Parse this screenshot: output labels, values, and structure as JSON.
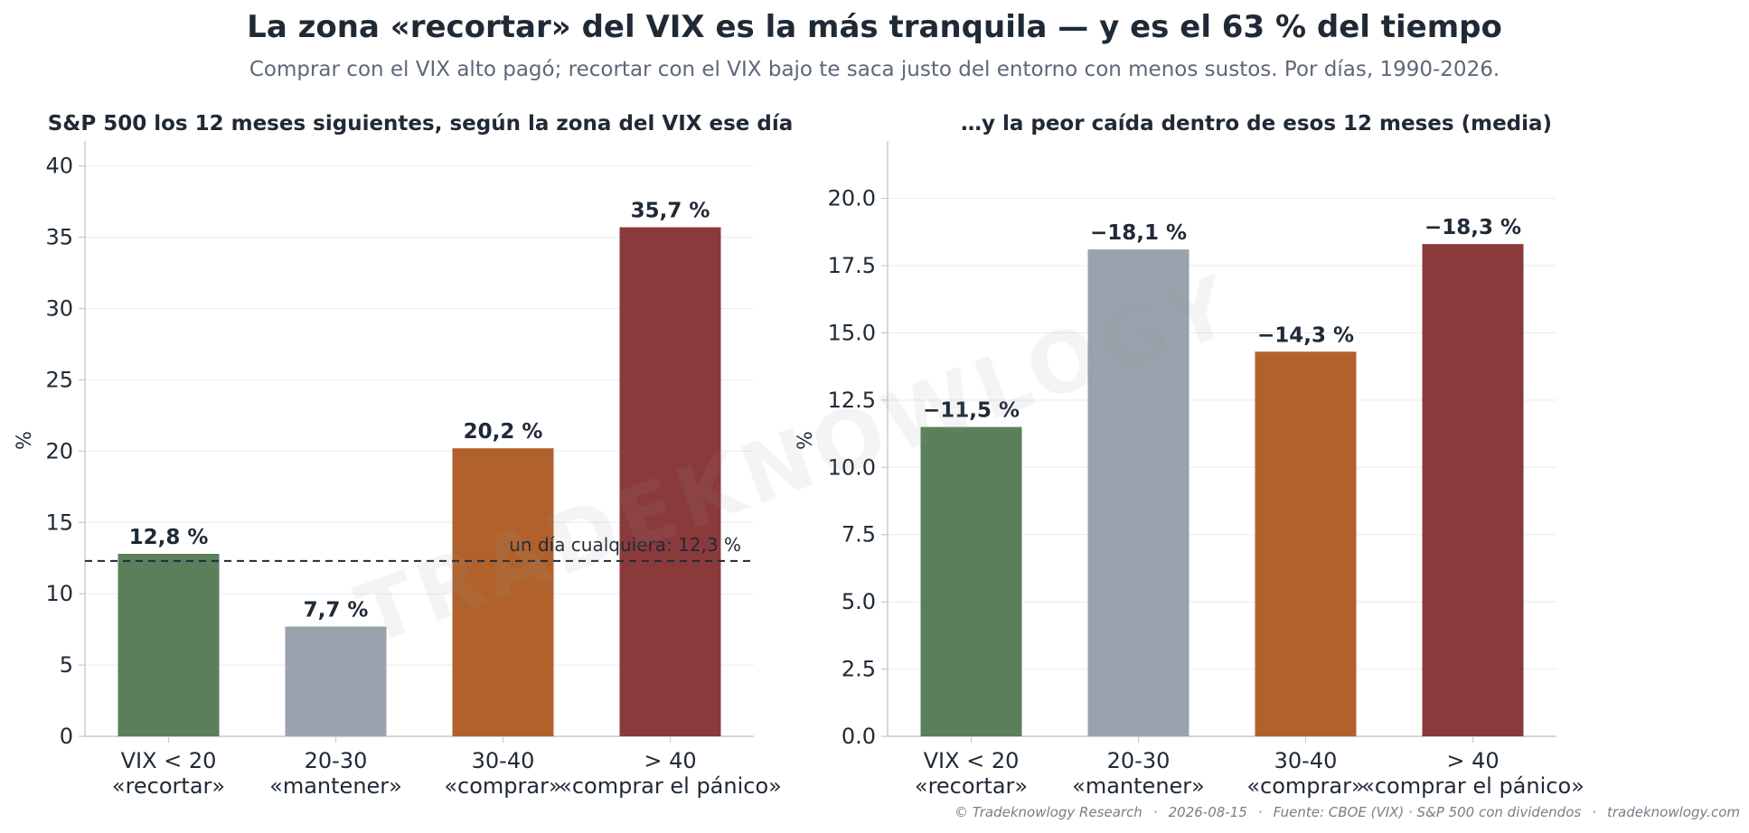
{
  "header": {
    "title": "La zona «recortar» del VIX es la más tranquila — y es el 63 % del tiempo",
    "subtitle": "Comprar con el VIX alto pagó; recortar con el VIX bajo te saca justo del entorno con menos sustos. Por días, 1990-2026."
  },
  "watermark": "TRADEKNOWLOGY",
  "footer": {
    "copyright": "© Tradeknowlogy Research",
    "date": "2026-08-15",
    "source": "Fuente: CBOE (VIX) · S&P 500 con dividendos",
    "site": "tradeknowlogy.com"
  },
  "colors": {
    "bars": [
      "#5b7f5a",
      "#9aa2ad",
      "#b1622c",
      "#8b3a3c"
    ],
    "axis": "#c5c9cf",
    "grid": "#eceef0",
    "text": "#1f2a36"
  },
  "chart_data": [
    {
      "type": "bar",
      "title": "S&P 500 los 12 meses siguientes, según la zona del VIX ese día",
      "ylabel": "%",
      "xlabel": "",
      "categories": [
        [
          "VIX < 20",
          "«recortar»"
        ],
        [
          "20-30",
          "«mantener»"
        ],
        [
          "30-40",
          "«comprar»"
        ],
        [
          "> 40",
          "«comprar el pánico»"
        ]
      ],
      "values": [
        12.8,
        7.7,
        20.2,
        35.7
      ],
      "value_labels": [
        "12,8 %",
        "7,7 %",
        "20,2 %",
        "35,7 %"
      ],
      "ylim": [
        0,
        41.5
      ],
      "yticks": [
        0,
        5,
        10,
        15,
        20,
        25,
        30,
        35,
        40
      ],
      "ytick_labels": [
        "0",
        "5",
        "10",
        "15",
        "20",
        "25",
        "30",
        "35",
        "40"
      ],
      "reference_line": {
        "value": 12.3,
        "label": "un día cualquiera: 12,3 %"
      },
      "grid": true
    },
    {
      "type": "bar",
      "title": "…y la peor caída dentro de esos 12 meses (media)",
      "ylabel": "%",
      "xlabel": "",
      "categories": [
        [
          "VIX < 20",
          "«recortar»"
        ],
        [
          "20-30",
          "«mantener»"
        ],
        [
          "30-40",
          "«comprar»"
        ],
        [
          "> 40",
          "«comprar el pánico»"
        ]
      ],
      "values": [
        11.5,
        18.1,
        14.3,
        18.3
      ],
      "value_labels": [
        "−11,5 %",
        "−18,1 %",
        "−14,3 %",
        "−18,3 %"
      ],
      "ylim": [
        0,
        22
      ],
      "yticks": [
        0,
        2.5,
        5,
        7.5,
        10,
        12.5,
        15,
        17.5,
        20
      ],
      "ytick_labels": [
        "0.0",
        "2.5",
        "5.0",
        "7.5",
        "10.0",
        "12.5",
        "15.0",
        "17.5",
        "20.0"
      ],
      "grid": true
    }
  ]
}
